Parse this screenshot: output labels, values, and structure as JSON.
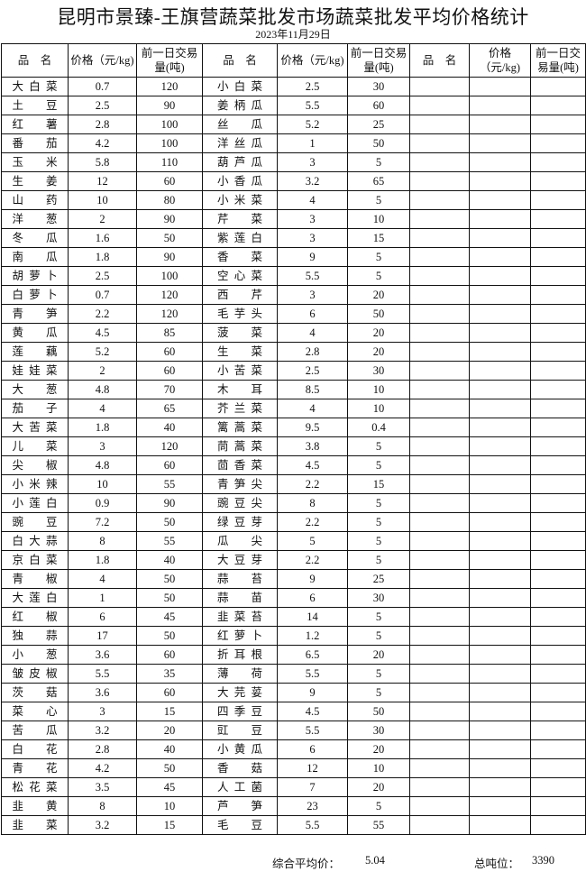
{
  "title": "昆明市景臻-王旗营蔬菜批发市场蔬菜批发平均价格统计",
  "date": "2023年11月29日",
  "headers": {
    "name": "品　名",
    "price": "价格（元/kg)",
    "volume": "前一日交易量(吨)"
  },
  "left": [
    [
      "大白菜",
      "0.7",
      "120"
    ],
    [
      "土豆",
      "2.5",
      "90"
    ],
    [
      "红薯",
      "2.8",
      "100"
    ],
    [
      "番茄",
      "4.2",
      "100"
    ],
    [
      "玉米",
      "5.8",
      "110"
    ],
    [
      "生姜",
      "12",
      "60"
    ],
    [
      "山药",
      "10",
      "80"
    ],
    [
      "洋葱",
      "2",
      "90"
    ],
    [
      "冬瓜",
      "1.6",
      "50"
    ],
    [
      "南瓜",
      "1.8",
      "90"
    ],
    [
      "胡萝卜",
      "2.5",
      "100"
    ],
    [
      "白萝卜",
      "0.7",
      "120"
    ],
    [
      "青笋",
      "2.2",
      "120"
    ],
    [
      "黄瓜",
      "4.5",
      "85"
    ],
    [
      "莲藕",
      "5.2",
      "60"
    ],
    [
      "娃娃菜",
      "2",
      "60"
    ],
    [
      "大葱",
      "4.8",
      "70"
    ],
    [
      "茄子",
      "4",
      "65"
    ],
    [
      "大苦菜",
      "1.8",
      "40"
    ],
    [
      "儿菜",
      "3",
      "120"
    ],
    [
      "尖椒",
      "4.8",
      "60"
    ],
    [
      "小米辣",
      "10",
      "55"
    ],
    [
      "小莲白",
      "0.9",
      "90"
    ],
    [
      "豌豆",
      "7.2",
      "50"
    ],
    [
      "白大蒜",
      "8",
      "55"
    ],
    [
      "京白菜",
      "1.8",
      "40"
    ],
    [
      "青椒",
      "4",
      "50"
    ],
    [
      "大莲白",
      "1",
      "50"
    ],
    [
      "红椒",
      "6",
      "45"
    ],
    [
      "独蒜",
      "17",
      "50"
    ],
    [
      "小葱",
      "3.6",
      "60"
    ],
    [
      "皱皮椒",
      "5.5",
      "35"
    ],
    [
      "茨菇",
      "3.6",
      "60"
    ],
    [
      "菜心",
      "3",
      "15"
    ],
    [
      "苦瓜",
      "3.2",
      "20"
    ],
    [
      "白花",
      "2.8",
      "40"
    ],
    [
      "青花",
      "4.2",
      "50"
    ],
    [
      "松花菜",
      "3.5",
      "45"
    ],
    [
      "韭黄",
      "8",
      "10"
    ],
    [
      "韭菜",
      "3.2",
      "15"
    ]
  ],
  "right": [
    [
      "小白菜",
      "2.5",
      "30"
    ],
    [
      "姜柄瓜",
      "5.5",
      "60"
    ],
    [
      "丝瓜",
      "5.2",
      "25"
    ],
    [
      "洋丝瓜",
      "1",
      "50"
    ],
    [
      "葫芦瓜",
      "3",
      "5"
    ],
    [
      "小香瓜",
      "3.2",
      "65"
    ],
    [
      "小米菜",
      "4",
      "5"
    ],
    [
      "芹菜",
      "3",
      "10"
    ],
    [
      "紫莲白",
      "3",
      "15"
    ],
    [
      "香菜",
      "9",
      "5"
    ],
    [
      "空心菜",
      "5.5",
      "5"
    ],
    [
      "西芹",
      "3",
      "20"
    ],
    [
      "毛芋头",
      "6",
      "50"
    ],
    [
      "菠菜",
      "4",
      "20"
    ],
    [
      "生菜",
      "2.8",
      "20"
    ],
    [
      "小苦菜",
      "2.5",
      "30"
    ],
    [
      "木耳",
      "8.5",
      "10"
    ],
    [
      "芥兰菜",
      "4",
      "10"
    ],
    [
      "篱蒿菜",
      "9.5",
      "0.4"
    ],
    [
      "茼蒿菜",
      "3.8",
      "5"
    ],
    [
      "茴香菜",
      "4.5",
      "5"
    ],
    [
      "青笋尖",
      "2.2",
      "15"
    ],
    [
      "豌豆尖",
      "8",
      "5"
    ],
    [
      "绿豆芽",
      "2.2",
      "5"
    ],
    [
      "瓜尖",
      "5",
      "5"
    ],
    [
      "大豆芽",
      "2.2",
      "5"
    ],
    [
      "蒜苔",
      "9",
      "25"
    ],
    [
      "蒜苗",
      "6",
      "30"
    ],
    [
      "韭菜苔",
      "14",
      "5"
    ],
    [
      "红萝卜",
      "1.2",
      "5"
    ],
    [
      "折耳根",
      "6.5",
      "20"
    ],
    [
      "薄荷",
      "5.5",
      "5"
    ],
    [
      "大芫荽",
      "9",
      "5"
    ],
    [
      "四季豆",
      "4.5",
      "50"
    ],
    [
      "豇豆",
      "5.5",
      "30"
    ],
    [
      "小黄瓜",
      "6",
      "20"
    ],
    [
      "香菇",
      "12",
      "10"
    ],
    [
      "人工菌",
      "7",
      "20"
    ],
    [
      "芦笋",
      "23",
      "5"
    ],
    [
      "毛豆",
      "5.5",
      "55"
    ]
  ],
  "footer": {
    "avg_label": "综合平均价：",
    "avg_value": "5.04",
    "total_label": "总吨位：",
    "total_value": "3390"
  }
}
